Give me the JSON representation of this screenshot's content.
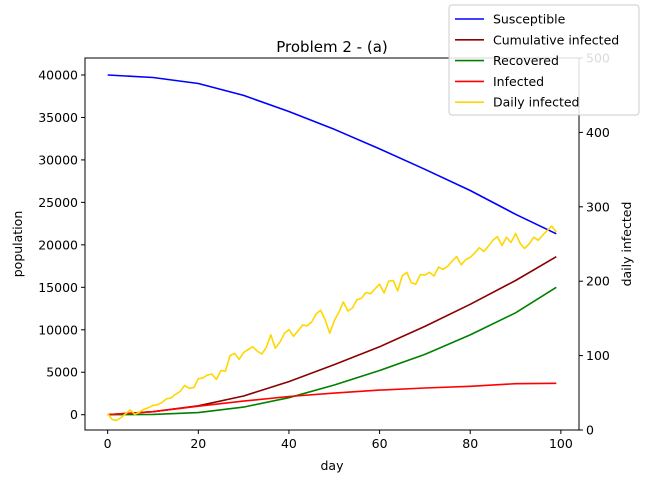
{
  "chart_data": {
    "type": "line",
    "title": "Problem 2 - (a)",
    "xlabel": "day",
    "ylabel": "population",
    "ylabel_right": "daily infected",
    "ylabel_right_color": "#ffd700",
    "xlim": [
      -5,
      104
    ],
    "ylim": [
      -1800,
      42000
    ],
    "ylim_right": [
      0,
      500
    ],
    "x_ticks": [
      0,
      20,
      40,
      60,
      80,
      100
    ],
    "y_ticks": [
      0,
      5000,
      10000,
      15000,
      20000,
      25000,
      30000,
      35000,
      40000
    ],
    "y_ticks_right": [
      0,
      100,
      200,
      300,
      400,
      500
    ],
    "legend_position": "top-right",
    "grid": false,
    "series": [
      {
        "name": "Susceptible",
        "axis": "left",
        "color": "#0000ff",
        "x": [
          0,
          10,
          20,
          30,
          40,
          50,
          60,
          70,
          80,
          90,
          99
        ],
        "values": [
          40000,
          39700,
          39000,
          37600,
          35700,
          33600,
          31300,
          28900,
          26400,
          23600,
          21300
        ]
      },
      {
        "name": "Cumulative infected",
        "axis": "left",
        "color": "#8b0000",
        "x": [
          0,
          10,
          20,
          30,
          40,
          50,
          60,
          70,
          80,
          90,
          99
        ],
        "values": [
          0,
          350,
          1050,
          2200,
          3900,
          5900,
          8000,
          10400,
          13000,
          15800,
          18600
        ]
      },
      {
        "name": "Recovered",
        "axis": "left",
        "color": "#008000",
        "x": [
          0,
          10,
          20,
          30,
          40,
          50,
          60,
          70,
          80,
          90,
          99
        ],
        "values": [
          0,
          40,
          250,
          900,
          2000,
          3500,
          5200,
          7100,
          9400,
          12000,
          15000
        ]
      },
      {
        "name": "Infected",
        "axis": "left",
        "color": "#ff0000",
        "x": [
          0,
          10,
          20,
          30,
          40,
          50,
          60,
          70,
          80,
          90,
          99
        ],
        "values": [
          0,
          350,
          1000,
          1600,
          2150,
          2550,
          2900,
          3150,
          3350,
          3650,
          3700
        ]
      },
      {
        "name": "Daily infected",
        "axis": "right",
        "color": "#ffd700",
        "x": [
          0,
          1,
          2,
          3,
          4,
          5,
          6,
          7,
          8,
          9,
          10,
          11,
          12,
          13,
          14,
          15,
          16,
          17,
          18,
          19,
          20,
          21,
          22,
          23,
          24,
          25,
          26,
          27,
          28,
          29,
          30,
          31,
          32,
          33,
          34,
          35,
          36,
          37,
          38,
          39,
          40,
          41,
          42,
          43,
          44,
          45,
          46,
          47,
          48,
          49,
          50,
          51,
          52,
          53,
          54,
          55,
          56,
          57,
          58,
          59,
          60,
          61,
          62,
          63,
          64,
          65,
          66,
          67,
          68,
          69,
          70,
          71,
          72,
          73,
          74,
          75,
          76,
          77,
          78,
          79,
          80,
          81,
          82,
          83,
          84,
          85,
          86,
          87,
          88,
          89,
          90,
          91,
          92,
          93,
          94,
          95,
          96,
          97,
          98,
          99
        ],
        "values": [
          22,
          14,
          13,
          17,
          22,
          27,
          21,
          24,
          28,
          30,
          33,
          34,
          37,
          42,
          43,
          48,
          52,
          60,
          56,
          57,
          69,
          70,
          74,
          75,
          68,
          80,
          79,
          100,
          103,
          95,
          104,
          108,
          112,
          106,
          102,
          111,
          128,
          110,
          118,
          130,
          135,
          126,
          133,
          141,
          140,
          145,
          156,
          161,
          148,
          130,
          147,
          158,
          172,
          160,
          164,
          175,
          177,
          185,
          183,
          190,
          196,
          184,
          200,
          201,
          187,
          207,
          212,
          198,
          196,
          209,
          208,
          212,
          207,
          219,
          216,
          220,
          227,
          233,
          222,
          229,
          232,
          238,
          245,
          240,
          247,
          255,
          260,
          248,
          259,
          252,
          264,
          251,
          244,
          250,
          259,
          255,
          262,
          268,
          274,
          266
        ]
      }
    ]
  }
}
